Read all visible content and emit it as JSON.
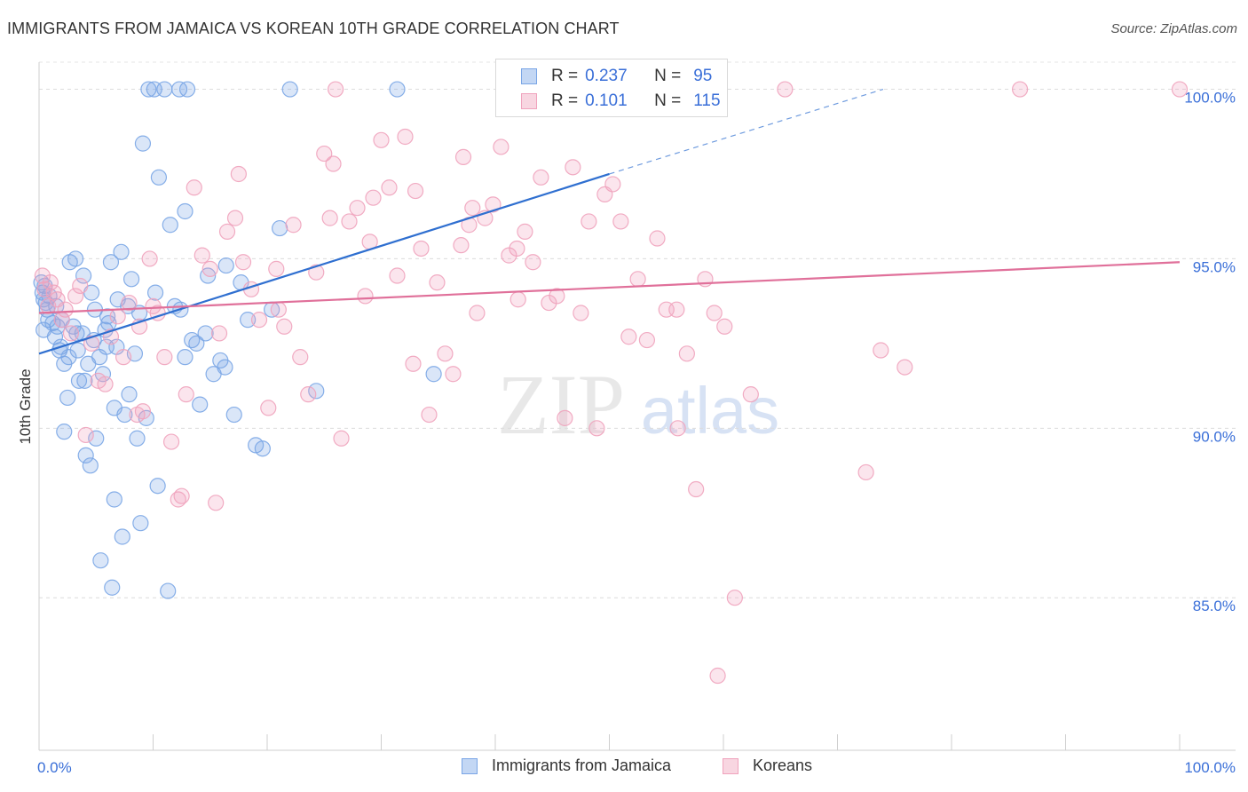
{
  "title": "IMMIGRANTS FROM JAMAICA VS KOREAN 10TH GRADE CORRELATION CHART",
  "source": "Source: ZipAtlas.com",
  "watermark": {
    "zip": "ZIP",
    "atlas": "atlas"
  },
  "legend": {
    "rows": [
      {
        "r_label": "R =",
        "r_value": "0.237",
        "n_label": "N =",
        "n_value": "95"
      },
      {
        "r_label": "R =",
        "r_value": "0.101",
        "n_label": "N =",
        "n_value": "115"
      }
    ]
  },
  "bottom_legend": [
    "Immigrants from Jamaica",
    "Koreans"
  ],
  "chart_data": {
    "type": "scatter",
    "title": "IMMIGRANTS FROM JAMAICA VS KOREAN 10TH GRADE CORRELATION CHART",
    "xlabel": "",
    "ylabel": "10th Grade",
    "xlim": [
      0,
      100
    ],
    "ylim": [
      80.5,
      100.8
    ],
    "x_tick_labels": [
      "0.0%",
      "100.0%"
    ],
    "y_ticks": [
      85,
      90,
      95,
      100
    ],
    "y_tick_labels": [
      "85.0%",
      "90.0%",
      "95.0%",
      "100.0%"
    ],
    "grid": "horizontal dashed",
    "legend_position": "top-center",
    "colors": {
      "jamaica": "#7aa6e6",
      "jamaica_line": "#2f6fd0",
      "koreans": "#f0a3bd",
      "koreans_line": "#e0709a",
      "tick_label": "#3a6fd8"
    },
    "series": [
      {
        "name": "Immigrants from Jamaica",
        "R": 0.237,
        "N": 95,
        "trend": {
          "x": [
            0,
            50
          ],
          "y": [
            92.2,
            97.5
          ],
          "dashed_to": [
            74,
            100
          ]
        },
        "points": [
          [
            0.2,
            94.3
          ],
          [
            0.3,
            94.0
          ],
          [
            0.4,
            93.8
          ],
          [
            0.5,
            94.2
          ],
          [
            0.6,
            93.7
          ],
          [
            0.7,
            93.5
          ],
          [
            0.8,
            93.2
          ],
          [
            0.4,
            92.9
          ],
          [
            1.2,
            93.1
          ],
          [
            1.4,
            92.7
          ],
          [
            1.6,
            93.0
          ],
          [
            1.8,
            92.3
          ],
          [
            2.0,
            93.2
          ],
          [
            2.2,
            91.9
          ],
          [
            2.5,
            90.9
          ],
          [
            2.7,
            94.9
          ],
          [
            3.0,
            93.0
          ],
          [
            3.2,
            95.0
          ],
          [
            3.5,
            91.4
          ],
          [
            3.8,
            92.8
          ],
          [
            3.9,
            94.5
          ],
          [
            4.1,
            89.2
          ],
          [
            4.3,
            91.9
          ],
          [
            4.6,
            94.0
          ],
          [
            4.8,
            92.6
          ],
          [
            5.0,
            89.7
          ],
          [
            5.3,
            92.1
          ],
          [
            5.6,
            91.6
          ],
          [
            5.8,
            92.9
          ],
          [
            6.1,
            93.1
          ],
          [
            6.3,
            94.9
          ],
          [
            6.6,
            90.6
          ],
          [
            6.9,
            93.8
          ],
          [
            7.2,
            95.2
          ],
          [
            7.5,
            90.4
          ],
          [
            7.8,
            93.6
          ],
          [
            8.1,
            94.4
          ],
          [
            8.4,
            92.2
          ],
          [
            8.8,
            93.4
          ],
          [
            9.1,
            98.4
          ],
          [
            9.6,
            100.0
          ],
          [
            10.1,
            100.0
          ],
          [
            10.5,
            97.4
          ],
          [
            11.0,
            100.0
          ],
          [
            11.5,
            96.0
          ],
          [
            12.3,
            100.0
          ],
          [
            13.0,
            100.0
          ],
          [
            12.8,
            96.4
          ],
          [
            7.3,
            86.8
          ],
          [
            8.9,
            87.2
          ],
          [
            10.4,
            88.3
          ],
          [
            11.3,
            85.2
          ],
          [
            5.4,
            86.1
          ],
          [
            6.4,
            85.3
          ],
          [
            4.5,
            88.9
          ],
          [
            6.6,
            87.9
          ],
          [
            12.4,
            93.5
          ],
          [
            13.4,
            92.6
          ],
          [
            14.1,
            90.7
          ],
          [
            14.8,
            94.5
          ],
          [
            15.3,
            91.6
          ],
          [
            15.9,
            92.0
          ],
          [
            16.4,
            94.8
          ],
          [
            17.1,
            90.4
          ],
          [
            17.7,
            94.3
          ],
          [
            18.3,
            93.2
          ],
          [
            19.0,
            89.5
          ],
          [
            19.6,
            89.4
          ],
          [
            20.4,
            93.5
          ],
          [
            21.1,
            95.9
          ],
          [
            22.0,
            100.0
          ],
          [
            24.3,
            91.1
          ],
          [
            31.4,
            100.0
          ],
          [
            34.6,
            91.6
          ],
          [
            2.2,
            89.9
          ],
          [
            1.9,
            92.4
          ],
          [
            3.4,
            92.3
          ],
          [
            4.0,
            91.4
          ],
          [
            5.9,
            92.4
          ],
          [
            8.6,
            89.7
          ],
          [
            9.4,
            90.3
          ],
          [
            12.8,
            92.1
          ],
          [
            16.3,
            91.8
          ],
          [
            11.9,
            93.6
          ],
          [
            13.8,
            92.5
          ],
          [
            7.9,
            91.0
          ],
          [
            6.0,
            93.3
          ],
          [
            0.9,
            93.9
          ],
          [
            1.5,
            93.6
          ],
          [
            2.6,
            92.1
          ],
          [
            3.3,
            92.8
          ],
          [
            4.9,
            93.5
          ],
          [
            10.2,
            94.0
          ],
          [
            14.6,
            92.8
          ],
          [
            6.8,
            92.4
          ]
        ]
      },
      {
        "name": "Koreans",
        "R": 0.101,
        "N": 115,
        "trend": {
          "x": [
            0,
            100
          ],
          "y": [
            93.4,
            94.9
          ]
        },
        "points": [
          [
            0.3,
            94.5
          ],
          [
            0.5,
            94.1
          ],
          [
            0.8,
            93.6
          ],
          [
            1.0,
            94.3
          ],
          [
            1.3,
            94.0
          ],
          [
            1.6,
            93.8
          ],
          [
            2.0,
            93.2
          ],
          [
            2.3,
            93.5
          ],
          [
            2.8,
            92.8
          ],
          [
            3.2,
            93.9
          ],
          [
            3.6,
            94.2
          ],
          [
            4.1,
            89.8
          ],
          [
            4.6,
            92.5
          ],
          [
            5.2,
            91.4
          ],
          [
            5.8,
            91.3
          ],
          [
            6.3,
            92.7
          ],
          [
            6.9,
            93.3
          ],
          [
            7.4,
            92.1
          ],
          [
            7.9,
            93.7
          ],
          [
            8.6,
            90.4
          ],
          [
            9.1,
            90.5
          ],
          [
            9.7,
            95.0
          ],
          [
            10.4,
            93.4
          ],
          [
            11.0,
            92.1
          ],
          [
            11.6,
            89.6
          ],
          [
            12.2,
            87.9
          ],
          [
            12.9,
            91.0
          ],
          [
            13.6,
            97.1
          ],
          [
            14.3,
            95.1
          ],
          [
            15.0,
            94.7
          ],
          [
            15.8,
            92.8
          ],
          [
            16.5,
            95.8
          ],
          [
            17.2,
            96.2
          ],
          [
            17.9,
            94.9
          ],
          [
            18.6,
            94.1
          ],
          [
            19.3,
            93.2
          ],
          [
            20.1,
            90.6
          ],
          [
            20.8,
            94.7
          ],
          [
            21.5,
            93.0
          ],
          [
            22.3,
            96.0
          ],
          [
            22.9,
            92.1
          ],
          [
            23.6,
            91.0
          ],
          [
            24.3,
            94.6
          ],
          [
            25.0,
            98.1
          ],
          [
            25.8,
            97.8
          ],
          [
            26.5,
            89.7
          ],
          [
            27.2,
            96.1
          ],
          [
            27.9,
            96.5
          ],
          [
            28.6,
            93.9
          ],
          [
            29.3,
            96.8
          ],
          [
            30.0,
            98.5
          ],
          [
            30.7,
            97.1
          ],
          [
            31.4,
            94.5
          ],
          [
            32.1,
            98.6
          ],
          [
            32.8,
            91.9
          ],
          [
            33.5,
            95.3
          ],
          [
            34.2,
            90.4
          ],
          [
            34.9,
            94.3
          ],
          [
            35.6,
            92.2
          ],
          [
            36.3,
            91.6
          ],
          [
            37.0,
            95.4
          ],
          [
            37.7,
            96.0
          ],
          [
            38.4,
            93.4
          ],
          [
            39.1,
            96.2
          ],
          [
            39.8,
            96.6
          ],
          [
            40.5,
            98.3
          ],
          [
            41.2,
            95.1
          ],
          [
            41.9,
            95.3
          ],
          [
            42.6,
            95.8
          ],
          [
            43.3,
            94.9
          ],
          [
            44.0,
            97.4
          ],
          [
            44.7,
            93.7
          ],
          [
            45.4,
            93.9
          ],
          [
            46.1,
            90.3
          ],
          [
            46.8,
            97.7
          ],
          [
            47.5,
            93.4
          ],
          [
            48.2,
            96.1
          ],
          [
            48.9,
            90.0
          ],
          [
            49.6,
            96.9
          ],
          [
            50.3,
            97.2
          ],
          [
            51.0,
            96.1
          ],
          [
            51.7,
            92.7
          ],
          [
            52.5,
            94.4
          ],
          [
            53.3,
            92.6
          ],
          [
            54.2,
            95.6
          ],
          [
            55.0,
            93.5
          ],
          [
            55.9,
            93.5
          ],
          [
            56.8,
            92.2
          ],
          [
            57.6,
            88.2
          ],
          [
            58.4,
            94.4
          ],
          [
            59.2,
            93.4
          ],
          [
            60.1,
            93.0
          ],
          [
            61.0,
            85.0
          ],
          [
            62.4,
            91.0
          ],
          [
            59.5,
            82.7
          ],
          [
            56.0,
            90.0
          ],
          [
            65.4,
            100.0
          ],
          [
            72.5,
            88.7
          ],
          [
            73.8,
            92.3
          ],
          [
            75.9,
            91.8
          ],
          [
            86.0,
            100.0
          ],
          [
            100.0,
            100.0
          ],
          [
            8.8,
            93.0
          ],
          [
            10.0,
            93.6
          ],
          [
            12.5,
            88.0
          ],
          [
            15.5,
            87.8
          ],
          [
            17.5,
            97.5
          ],
          [
            21.0,
            93.5
          ],
          [
            25.5,
            96.2
          ],
          [
            29.0,
            95.5
          ],
          [
            33.0,
            97.0
          ],
          [
            38.0,
            96.5
          ],
          [
            42.0,
            93.8
          ],
          [
            26.0,
            100.0
          ],
          [
            37.2,
            98.0
          ]
        ]
      }
    ]
  }
}
